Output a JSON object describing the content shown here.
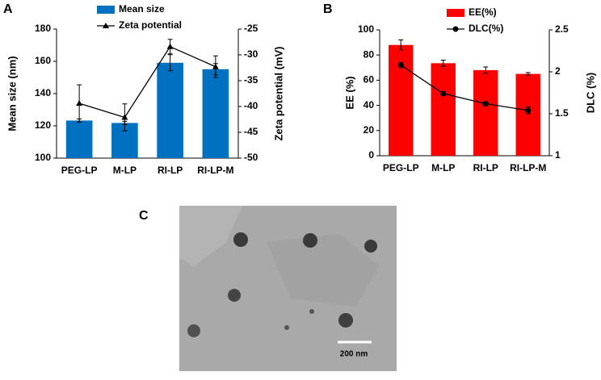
{
  "chart_data": [
    {
      "type": "bar",
      "panel": "A",
      "categories": [
        "PEG-LP",
        "M-LP",
        "RI-LP",
        "RI-LP-M"
      ],
      "ylabel": "Mean size (nm)",
      "y2label": "Zeta potential (mV)",
      "ylim": [
        100,
        180
      ],
      "yticks": [
        100,
        120,
        140,
        160,
        180
      ],
      "y2lim": [
        -50,
        -25
      ],
      "y2ticks": [
        -50,
        -45,
        -40,
        -35,
        -30,
        -25
      ],
      "series": [
        {
          "name": "Mean size",
          "type": "bar",
          "color": "#0070c0",
          "values": [
            123.3,
            121.8,
            159.1,
            155.1
          ],
          "errors": [
            1,
            1,
            5,
            3.5
          ]
        },
        {
          "name": "Zeta potential",
          "type": "line",
          "marker": "triangle",
          "axis": "y2",
          "color": "#000000",
          "values": [
            -39.4,
            -42.1,
            -28.4,
            -32.3
          ],
          "errors": [
            3.6,
            2.6,
            1.4,
            2.1
          ]
        }
      ]
    },
    {
      "type": "bar",
      "panel": "B",
      "categories": [
        "PEG-LP",
        "M-LP",
        "RI-LP",
        "RI-LP-M"
      ],
      "ylabel": "EE (%)",
      "y2label": "DLC (%)",
      "ylim": [
        0,
        100
      ],
      "yticks": [
        0,
        20,
        40,
        60,
        80,
        100
      ],
      "y2lim": [
        1,
        2.5
      ],
      "y2ticks": [
        1,
        1.5,
        2,
        2.5
      ],
      "series": [
        {
          "name": "EE(%)",
          "type": "bar",
          "color": "#ff0000",
          "values": [
            88,
            73.5,
            68,
            65
          ],
          "errors": [
            4,
            2.5,
            2.5,
            1
          ]
        },
        {
          "name": "DLC(%)",
          "type": "line",
          "marker": "circle",
          "axis": "y2",
          "color": "#000000",
          "values": [
            2.08,
            1.74,
            1.62,
            1.54
          ],
          "errors": [
            0.03,
            0.02,
            0.02,
            0.04
          ]
        }
      ]
    }
  ],
  "image": {
    "panel": "C",
    "scale_bar": "200 nm"
  }
}
